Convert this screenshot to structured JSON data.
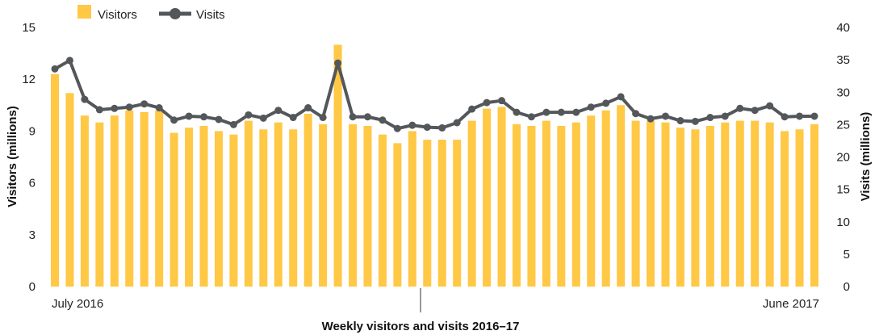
{
  "chart_data": {
    "type": "bar",
    "title": "Weekly visitors and visits 2016–17",
    "legend": {
      "placement": "top-left",
      "entries": [
        "Visitors",
        "Visits"
      ]
    },
    "x_start_label": "July 2016",
    "x_end_label": "June 2017",
    "y_left": {
      "label": "Visitors (millions)",
      "ylim": [
        0,
        15
      ],
      "ticks": [
        "0",
        "3",
        "6",
        "9",
        "12",
        "15"
      ]
    },
    "y_right": {
      "label": "Visits (millions)",
      "ylim": [
        0,
        40
      ],
      "ticks": [
        "0",
        "5",
        "10",
        "15",
        "20",
        "25",
        "30",
        "35",
        "40"
      ]
    },
    "grid": false,
    "colors": {
      "bars": "#FFC845",
      "line": "#54575A"
    },
    "series": [
      {
        "name": "Visitors",
        "type": "bar",
        "axis": "left",
        "values": [
          12.3,
          11.2,
          9.9,
          9.5,
          9.9,
          10.2,
          10.1,
          10.2,
          8.9,
          9.2,
          9.3,
          9.0,
          8.8,
          9.6,
          9.1,
          9.5,
          9.1,
          10.0,
          9.4,
          14.0,
          9.4,
          9.3,
          8.8,
          8.3,
          9.0,
          8.5,
          8.5,
          8.5,
          9.6,
          10.3,
          10.4,
          9.4,
          9.3,
          9.6,
          9.3,
          9.5,
          9.9,
          10.2,
          10.5,
          9.6,
          9.6,
          9.5,
          9.2,
          9.1,
          9.3,
          9.5,
          9.6,
          9.6,
          9.5,
          9.0,
          9.1,
          9.4
        ]
      },
      {
        "name": "Visits",
        "type": "line",
        "axis": "right",
        "values": [
          33.6,
          34.9,
          28.9,
          27.3,
          27.5,
          27.7,
          28.2,
          27.6,
          25.7,
          26.3,
          26.2,
          25.8,
          25.0,
          26.5,
          26.0,
          27.2,
          26.1,
          27.6,
          26.1,
          34.5,
          26.2,
          26.2,
          25.7,
          24.4,
          24.9,
          24.6,
          24.5,
          25.3,
          27.4,
          28.4,
          28.7,
          26.9,
          26.2,
          26.9,
          26.9,
          26.9,
          27.7,
          28.3,
          29.3,
          26.7,
          25.9,
          26.3,
          25.6,
          25.5,
          26.1,
          26.3,
          27.5,
          27.2,
          27.9,
          26.2,
          26.3,
          26.3
        ]
      }
    ]
  }
}
